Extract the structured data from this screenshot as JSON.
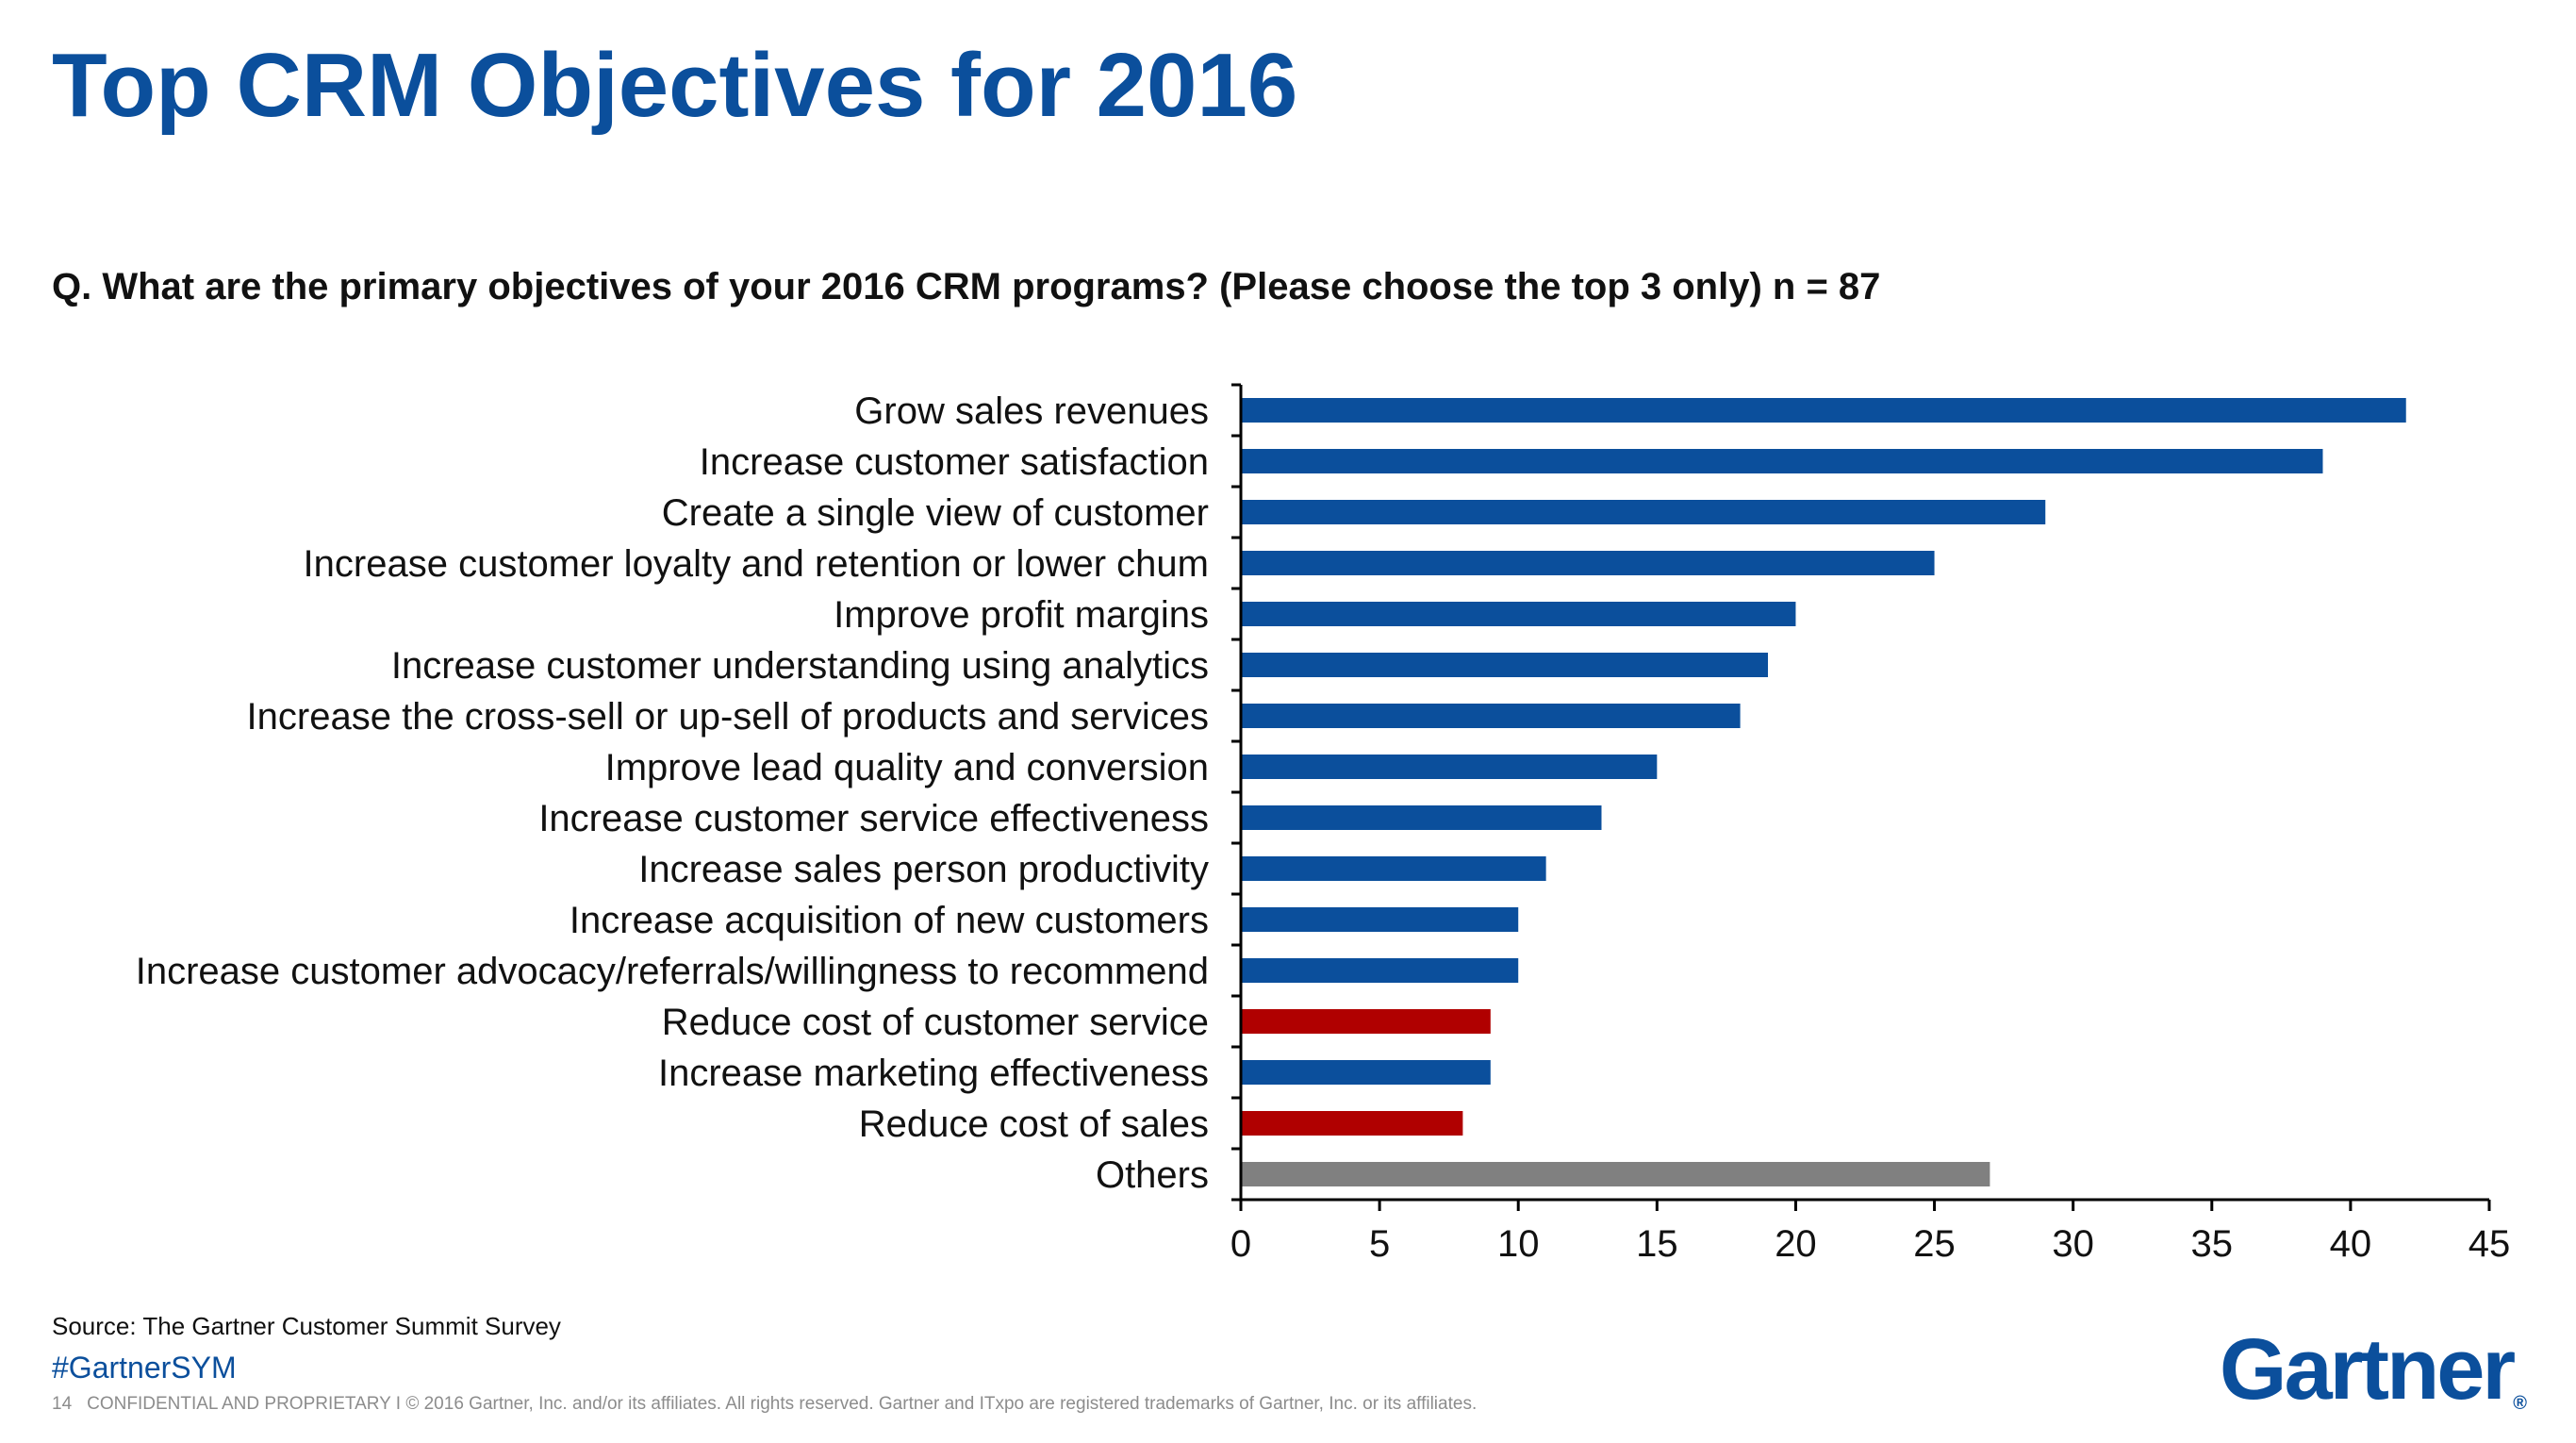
{
  "slide": {
    "title": "Top CRM Objectives for 2016",
    "question": "Q. What are the primary objectives of your 2016 CRM programs? (Please choose the top 3 only) n = 87",
    "source": "Source: The Gartner Customer Summit Survey",
    "hashtag": "#GartnerSYM",
    "page_number": "14",
    "footer": "CONFIDENTIAL AND PROPRIETARY  I  © 2016 Gartner, Inc. and/or its affiliates. All rights reserved. Gartner and ITxpo are registered trademarks of Gartner, Inc. or its affiliates.",
    "logo_text": "Gartner",
    "logo_mark": "®"
  },
  "colors": {
    "title": "#0b4f9c",
    "bar_default": "#0b4f9c",
    "bar_cost": "#b00000",
    "bar_other": "#808080"
  },
  "chart_data": {
    "type": "bar",
    "orientation": "horizontal",
    "categories": [
      "Grow sales revenues",
      "Increase customer satisfaction",
      "Create a single view of customer",
      "Increase customer loyalty and retention or lower chum",
      "Improve profit margins",
      "Increase customer understanding using analytics",
      "Increase the cross-sell or up-sell of products and services",
      "Improve lead quality and conversion",
      "Increase customer service effectiveness",
      "Increase sales person productivity",
      "Increase acquisition of new customers",
      "Increase customer advocacy/referrals/willingness to recommend",
      "Reduce cost of customer service",
      "Increase marketing effectiveness",
      "Reduce cost of sales",
      "Others"
    ],
    "values": [
      42,
      39,
      29,
      25,
      20,
      19,
      18,
      15,
      13,
      11,
      10,
      10,
      9,
      9,
      8,
      27
    ],
    "bar_color_keys": [
      "bar_default",
      "bar_default",
      "bar_default",
      "bar_default",
      "bar_default",
      "bar_default",
      "bar_default",
      "bar_default",
      "bar_default",
      "bar_default",
      "bar_default",
      "bar_default",
      "bar_cost",
      "bar_default",
      "bar_cost",
      "bar_other"
    ],
    "xlim": [
      0,
      45
    ],
    "xticks": [
      0,
      5,
      10,
      15,
      20,
      25,
      30,
      35,
      40,
      45
    ],
    "xlabel": "",
    "ylabel": "",
    "grid": false,
    "legend": "none"
  }
}
